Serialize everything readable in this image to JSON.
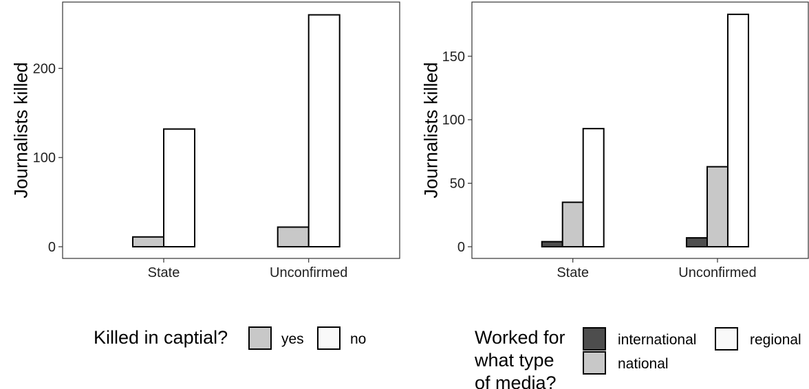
{
  "chart_data": [
    {
      "type": "bar",
      "categories": [
        "State",
        "Unconfirmed"
      ],
      "ylabel": "Journalists killed",
      "ylim": [
        0,
        262
      ],
      "yticks": [
        0,
        100,
        200
      ],
      "series": [
        {
          "name": "yes",
          "color": "#c8c8c8",
          "values": [
            11,
            22
          ]
        },
        {
          "name": "no",
          "color": "#ffffff",
          "values": [
            132,
            260
          ]
        }
      ],
      "legend": {
        "position": "bottom",
        "title_lines": [
          "Killed in captial?"
        ],
        "items": [
          {
            "label": "yes",
            "color": "#c8c8c8"
          },
          {
            "label": "no",
            "color": "#f9f9f9"
          }
        ]
      }
    },
    {
      "type": "bar",
      "categories": [
        "State",
        "Unconfirmed"
      ],
      "ylabel": "Journalists killed",
      "ylim": [
        0,
        184
      ],
      "yticks": [
        0,
        50,
        100,
        150
      ],
      "series": [
        {
          "name": "international",
          "color": "#4d4d4d",
          "values": [
            4,
            7
          ]
        },
        {
          "name": "national",
          "color": "#c8c8c8",
          "values": [
            35,
            63
          ]
        },
        {
          "name": "regional",
          "color": "#ffffff",
          "values": [
            93,
            183
          ]
        }
      ],
      "legend": {
        "position": "bottom",
        "title_lines": [
          "Worked for",
          "what type",
          "of media?"
        ],
        "items": [
          {
            "label": "international",
            "color": "#4d4d4d"
          },
          {
            "label": "national",
            "color": "#c8c8c8"
          },
          {
            "label": "regional",
            "color": "#f9f9f9"
          }
        ]
      }
    }
  ]
}
